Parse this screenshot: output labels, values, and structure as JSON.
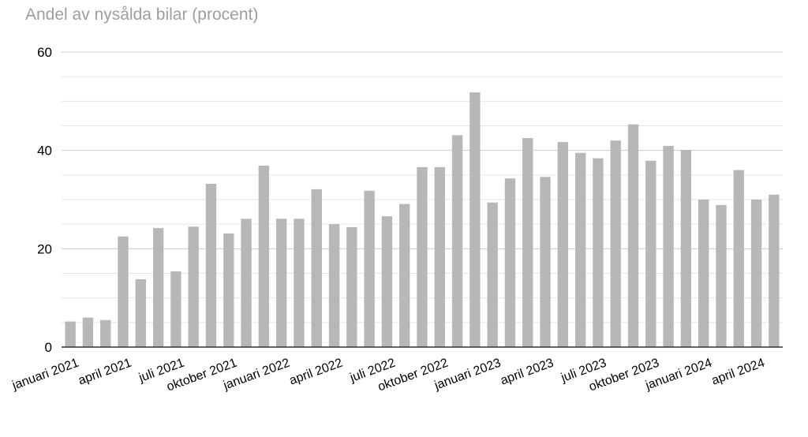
{
  "chart_data": {
    "type": "bar",
    "title": "Andel av nysålda bilar (procent)",
    "xlabel": "",
    "ylabel": "",
    "ylim": [
      0,
      60
    ],
    "y_ticks": [
      0,
      20,
      40,
      60
    ],
    "grid": true,
    "bar_color": "#b7b7b7",
    "months": [
      "2021-01",
      "2021-02",
      "2021-03",
      "2021-04",
      "2021-05",
      "2021-06",
      "2021-07",
      "2021-08",
      "2021-09",
      "2021-10",
      "2021-11",
      "2021-12",
      "2022-01",
      "2022-02",
      "2022-03",
      "2022-04",
      "2022-05",
      "2022-06",
      "2022-07",
      "2022-08",
      "2022-09",
      "2022-10",
      "2022-11",
      "2022-12",
      "2023-01",
      "2023-02",
      "2023-03",
      "2023-04",
      "2023-05",
      "2023-06",
      "2023-07",
      "2023-08",
      "2023-09",
      "2023-10",
      "2023-11",
      "2023-12",
      "2024-01",
      "2024-02",
      "2024-03",
      "2024-04",
      "2024-05"
    ],
    "values": [
      5.2,
      6.0,
      5.5,
      22.5,
      13.8,
      24.2,
      15.4,
      24.5,
      33.2,
      23.1,
      26.1,
      36.9,
      26.1,
      26.1,
      32.1,
      25.0,
      24.4,
      31.8,
      26.6,
      29.1,
      36.6,
      36.6,
      43.1,
      51.8,
      29.4,
      34.3,
      42.5,
      34.6,
      41.7,
      39.5,
      38.4,
      42.0,
      45.3,
      37.9,
      40.9,
      40.1,
      30.0,
      28.9,
      36.0,
      30.0,
      31.0
    ],
    "tick_labels": [
      {
        "label": "januari 2021",
        "index": 0
      },
      {
        "label": "april 2021",
        "index": 3
      },
      {
        "label": "juli 2021",
        "index": 6
      },
      {
        "label": "oktober 2021",
        "index": 9
      },
      {
        "label": "januari 2022",
        "index": 12
      },
      {
        "label": "april 2022",
        "index": 15
      },
      {
        "label": "juli 2022",
        "index": 18
      },
      {
        "label": "oktober 2022",
        "index": 21
      },
      {
        "label": "januari 2023",
        "index": 24
      },
      {
        "label": "april 2023",
        "index": 27
      },
      {
        "label": "juli 2023",
        "index": 30
      },
      {
        "label": "oktober 2023",
        "index": 33
      },
      {
        "label": "januari 2024",
        "index": 36
      },
      {
        "label": "april 2024",
        "index": 39
      }
    ]
  }
}
